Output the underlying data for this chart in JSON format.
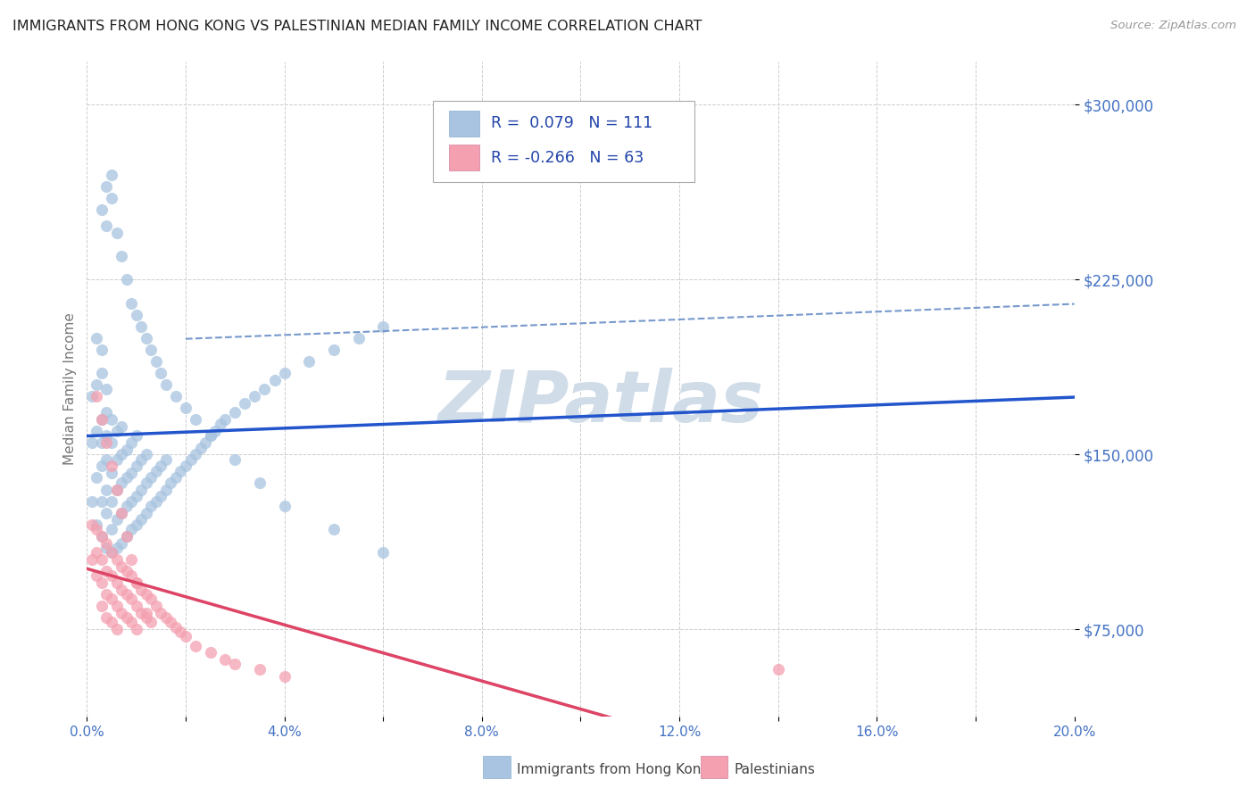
{
  "title": "IMMIGRANTS FROM HONG KONG VS PALESTINIAN MEDIAN FAMILY INCOME CORRELATION CHART",
  "source": "Source: ZipAtlas.com",
  "ylabel": "Median Family Income",
  "xlim": [
    0.0,
    0.2
  ],
  "ylim": [
    37500,
    318750
  ],
  "yticks": [
    75000,
    150000,
    225000,
    300000
  ],
  "ytick_labels": [
    "$75,000",
    "$150,000",
    "$225,000",
    "$300,000"
  ],
  "xticks": [
    0.0,
    0.02,
    0.04,
    0.06,
    0.08,
    0.1,
    0.12,
    0.14,
    0.16,
    0.18,
    0.2
  ],
  "xtick_labels": [
    "0.0%",
    "",
    "4.0%",
    "",
    "8.0%",
    "",
    "12.0%",
    "",
    "16.0%",
    "",
    "20.0%"
  ],
  "blue_color": "#a8c4e0",
  "pink_color": "#f4a0b0",
  "blue_line_color": "#2255cc",
  "blue_dash_color": "#7799cc",
  "pink_line_color": "#dd4466",
  "blue_R": 0.079,
  "blue_N": 111,
  "pink_R": -0.266,
  "pink_N": 63,
  "legend_entries": [
    "Immigrants from Hong Kong",
    "Palestinians"
  ],
  "background_color": "#ffffff",
  "grid_color": "#cccccc",
  "watermark": "ZIPatlas",
  "watermark_color": "#d0dce8",
  "title_fontsize": 11.5,
  "tick_color": "#4472c4",
  "axis_label_color": "#777777",
  "blue_scatter_x": [
    0.001,
    0.001,
    0.001,
    0.002,
    0.002,
    0.002,
    0.002,
    0.002,
    0.003,
    0.003,
    0.003,
    0.003,
    0.003,
    0.003,
    0.003,
    0.004,
    0.004,
    0.004,
    0.004,
    0.004,
    0.004,
    0.004,
    0.005,
    0.005,
    0.005,
    0.005,
    0.005,
    0.005,
    0.006,
    0.006,
    0.006,
    0.006,
    0.006,
    0.007,
    0.007,
    0.007,
    0.007,
    0.007,
    0.008,
    0.008,
    0.008,
    0.008,
    0.009,
    0.009,
    0.009,
    0.009,
    0.01,
    0.01,
    0.01,
    0.01,
    0.011,
    0.011,
    0.011,
    0.012,
    0.012,
    0.012,
    0.013,
    0.013,
    0.014,
    0.014,
    0.015,
    0.015,
    0.016,
    0.016,
    0.017,
    0.018,
    0.019,
    0.02,
    0.021,
    0.022,
    0.023,
    0.024,
    0.025,
    0.026,
    0.027,
    0.028,
    0.03,
    0.032,
    0.034,
    0.036,
    0.038,
    0.04,
    0.045,
    0.05,
    0.055,
    0.06,
    0.003,
    0.004,
    0.004,
    0.005,
    0.005,
    0.006,
    0.007,
    0.008,
    0.009,
    0.01,
    0.011,
    0.012,
    0.013,
    0.014,
    0.015,
    0.016,
    0.018,
    0.02,
    0.022,
    0.025,
    0.03,
    0.035,
    0.04,
    0.05,
    0.06
  ],
  "blue_scatter_y": [
    130000,
    155000,
    175000,
    120000,
    140000,
    160000,
    180000,
    200000,
    115000,
    130000,
    145000,
    155000,
    165000,
    185000,
    195000,
    110000,
    125000,
    135000,
    148000,
    158000,
    168000,
    178000,
    108000,
    118000,
    130000,
    142000,
    155000,
    165000,
    110000,
    122000,
    135000,
    148000,
    160000,
    112000,
    125000,
    138000,
    150000,
    162000,
    115000,
    128000,
    140000,
    152000,
    118000,
    130000,
    142000,
    155000,
    120000,
    132000,
    145000,
    158000,
    122000,
    135000,
    148000,
    125000,
    138000,
    150000,
    128000,
    140000,
    130000,
    143000,
    132000,
    145000,
    135000,
    148000,
    138000,
    140000,
    143000,
    145000,
    148000,
    150000,
    153000,
    155000,
    158000,
    160000,
    163000,
    165000,
    168000,
    172000,
    175000,
    178000,
    182000,
    185000,
    190000,
    195000,
    200000,
    205000,
    255000,
    248000,
    265000,
    270000,
    260000,
    245000,
    235000,
    225000,
    215000,
    210000,
    205000,
    200000,
    195000,
    190000,
    185000,
    180000,
    175000,
    170000,
    165000,
    158000,
    148000,
    138000,
    128000,
    118000,
    108000
  ],
  "pink_scatter_x": [
    0.001,
    0.001,
    0.002,
    0.002,
    0.002,
    0.003,
    0.003,
    0.003,
    0.003,
    0.004,
    0.004,
    0.004,
    0.004,
    0.005,
    0.005,
    0.005,
    0.005,
    0.006,
    0.006,
    0.006,
    0.006,
    0.007,
    0.007,
    0.007,
    0.008,
    0.008,
    0.008,
    0.009,
    0.009,
    0.009,
    0.01,
    0.01,
    0.01,
    0.011,
    0.011,
    0.012,
    0.012,
    0.013,
    0.013,
    0.014,
    0.015,
    0.016,
    0.017,
    0.018,
    0.019,
    0.02,
    0.022,
    0.025,
    0.028,
    0.03,
    0.035,
    0.04,
    0.002,
    0.003,
    0.004,
    0.005,
    0.006,
    0.007,
    0.008,
    0.009,
    0.01,
    0.012,
    0.14
  ],
  "pink_scatter_y": [
    120000,
    105000,
    118000,
    108000,
    98000,
    115000,
    105000,
    95000,
    85000,
    112000,
    100000,
    90000,
    80000,
    108000,
    98000,
    88000,
    78000,
    105000,
    95000,
    85000,
    75000,
    102000,
    92000,
    82000,
    100000,
    90000,
    80000,
    98000,
    88000,
    78000,
    95000,
    85000,
    75000,
    92000,
    82000,
    90000,
    80000,
    88000,
    78000,
    85000,
    82000,
    80000,
    78000,
    76000,
    74000,
    72000,
    68000,
    65000,
    62000,
    60000,
    58000,
    55000,
    175000,
    165000,
    155000,
    145000,
    135000,
    125000,
    115000,
    105000,
    95000,
    82000,
    58000
  ]
}
